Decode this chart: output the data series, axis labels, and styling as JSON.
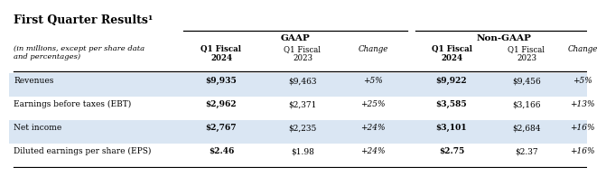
{
  "title": "First Quarter Results¹",
  "subtitle": "(in millions, except per share data\nand percentages)",
  "gaap_header": "GAAP",
  "nongaap_header": "Non-GAAP",
  "col_headers": [
    "Q1 Fiscal\n2024",
    "Q1 Fiscal\n2023",
    "Change",
    "Q1 Fiscal\n2024",
    "Q1 Fiscal\n2023",
    "Change"
  ],
  "col_bold": [
    true,
    false,
    false,
    true,
    false,
    false
  ],
  "col_italic": [
    false,
    false,
    true,
    false,
    false,
    true
  ],
  "rows": [
    {
      "label": "Revenues",
      "values": [
        "$9,935",
        "$9,463",
        "+5%",
        "$9,922",
        "$9,456",
        "+5%"
      ],
      "bold_cols": [
        0,
        3
      ],
      "italic_cols": [
        2,
        5
      ],
      "bg": "#dae6f3"
    },
    {
      "label": "Earnings before taxes (EBT)",
      "values": [
        "$2,962",
        "$2,371",
        "+25%",
        "$3,585",
        "$3,166",
        "+13%"
      ],
      "bold_cols": [
        0,
        3
      ],
      "italic_cols": [
        2,
        5
      ],
      "bg": "#ffffff"
    },
    {
      "label": "Net income",
      "values": [
        "$2,767",
        "$2,235",
        "+24%",
        "$3,101",
        "$2,684",
        "+16%"
      ],
      "bold_cols": [
        0,
        3
      ],
      "italic_cols": [
        2,
        5
      ],
      "bg": "#dae6f3"
    },
    {
      "label": "Diluted earnings per share (EPS)",
      "values": [
        "$2.46",
        "$1.98",
        "+24%",
        "$2.75",
        "$2.37",
        "+16%"
      ],
      "bold_cols": [
        0,
        3
      ],
      "italic_cols": [
        2,
        5
      ],
      "bg": "#ffffff"
    }
  ],
  "background_color": "#ffffff"
}
